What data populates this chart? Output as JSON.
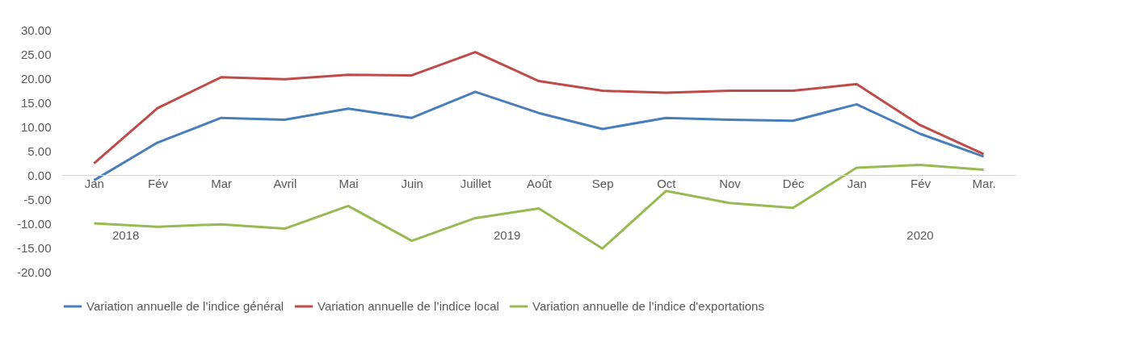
{
  "chart_data": {
    "type": "line",
    "categories": [
      "Jan",
      "Fév",
      "Mar",
      "Avril",
      "Mai",
      "Juin",
      "Juillet",
      "Août",
      "Sep",
      "Oct",
      "Nov",
      "Déc",
      "Jan",
      "Fév",
      "Mar."
    ],
    "series": [
      {
        "name": "Variation annuelle de l’indice général",
        "color": "#4a7ebb",
        "values": [
          -1.1,
          6.7,
          11.8,
          11.4,
          13.7,
          11.8,
          17.2,
          12.8,
          9.5,
          11.8,
          11.4,
          11.2,
          14.6,
          8.5,
          3.8
        ]
      },
      {
        "name": "Variation annuelle de l’indice local",
        "color": "#be4b48",
        "values": [
          2.4,
          13.8,
          20.2,
          19.8,
          20.7,
          20.6,
          25.4,
          19.4,
          17.4,
          17.0,
          17.4,
          17.4,
          18.8,
          10.3,
          4.3
        ]
      },
      {
        "name": "Variation annuelle de l’indice d'exportations",
        "color": "#98b954",
        "values": [
          -10.0,
          -10.7,
          -10.2,
          -11.1,
          -6.4,
          -13.6,
          -8.9,
          -6.9,
          -15.2,
          -3.3,
          -5.8,
          -6.8,
          1.5,
          2.1,
          1.1
        ]
      }
    ],
    "ylim": [
      -20,
      30
    ],
    "yticks": [
      {
        "value": -20,
        "label": "-20.00"
      },
      {
        "value": -15,
        "label": "-15.00"
      },
      {
        "value": -10,
        "label": "-10.00"
      },
      {
        "value": -5,
        "label": "-5.00"
      },
      {
        "value": 0,
        "label": "0.00"
      },
      {
        "value": 5,
        "label": "5.00"
      },
      {
        "value": 10,
        "label": "10.00"
      },
      {
        "value": 15,
        "label": "15.00"
      },
      {
        "value": 20,
        "label": "20.00"
      },
      {
        "value": 25,
        "label": "25.00"
      },
      {
        "value": 30,
        "label": "30.00"
      }
    ],
    "annotations": [
      "2018",
      "2019",
      "2020"
    ],
    "legend": "bottom",
    "grid": false,
    "marker": "none",
    "line_style": "solid"
  }
}
